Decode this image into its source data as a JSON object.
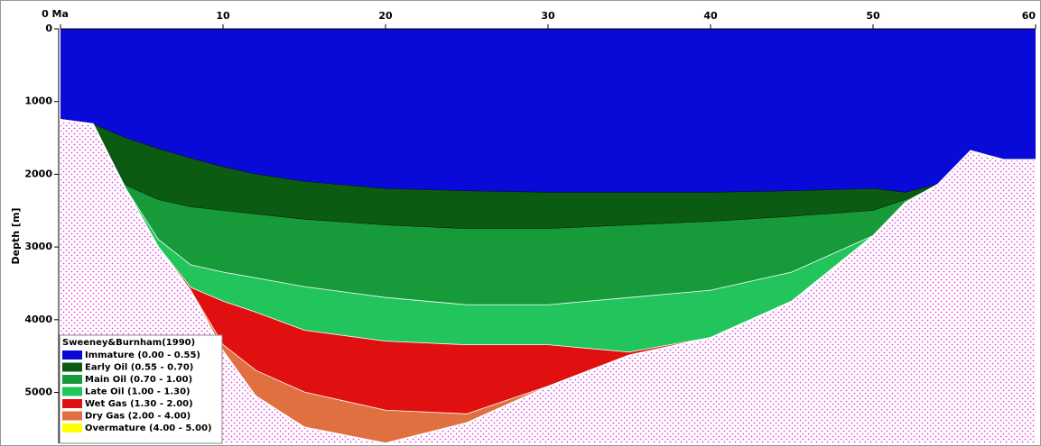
{
  "chart_data": {
    "type": "section",
    "y_label": "Depth [m]",
    "legend_title": "Sweeney&Burnham(1990)",
    "legend_position": "lower left",
    "x": [
      0,
      2,
      4,
      6,
      8,
      10,
      12,
      15,
      20,
      25,
      30,
      35,
      40,
      45,
      50,
      52,
      54,
      56,
      58,
      60
    ],
    "xlim": [
      0,
      60
    ],
    "xticks": [
      {
        "value": 0,
        "label": "0 Ma"
      },
      10,
      20,
      30,
      40,
      50,
      60
    ],
    "ylim": [
      0,
      5700
    ],
    "yticks": [
      0,
      1000,
      2000,
      3000,
      4000,
      5000
    ],
    "basement_color": "#e040e0",
    "series": [
      {
        "name": "Immature (0.00 - 0.55)",
        "color": "#0a0ad8",
        "values": [
          1250,
          1310,
          1500,
          1650,
          1780,
          1900,
          2000,
          2100,
          2200,
          2230,
          2250,
          2250,
          2250,
          2230,
          2200,
          2250,
          2140,
          1680,
          1800,
          1800
        ]
      },
      {
        "name": "Early Oil (0.55 - 0.70)",
        "color": "#0b5c12",
        "values": [
          1250,
          1310,
          2150,
          2350,
          2450,
          2500,
          2550,
          2620,
          2700,
          2750,
          2750,
          2700,
          2650,
          2580,
          2500,
          2350,
          2140,
          1680,
          1800,
          1800
        ]
      },
      {
        "name": "Main Oil (0.70 - 1.00)",
        "color": "#179a3a",
        "values": [
          1250,
          1310,
          2200,
          2900,
          3250,
          3350,
          3430,
          3550,
          3700,
          3800,
          3800,
          3700,
          3600,
          3350,
          2850,
          2390,
          2140,
          1680,
          1800,
          1800
        ]
      },
      {
        "name": "Late Oil (1.00 - 1.30)",
        "color": "#22c45c",
        "values": [
          1250,
          1310,
          2200,
          3000,
          3560,
          3750,
          3900,
          4150,
          4300,
          4350,
          4350,
          4450,
          4250,
          3750,
          2850,
          2390,
          2140,
          1680,
          1800,
          1800
        ]
      },
      {
        "name": "Wet Gas (1.30 - 2.00)",
        "color": "#e01010",
        "values": [
          1250,
          1310,
          2200,
          3000,
          3600,
          4350,
          4700,
          5000,
          5250,
          5300,
          4920,
          4490,
          4250,
          3750,
          2850,
          2390,
          2140,
          1680,
          1800,
          1800
        ]
      },
      {
        "name": "Dry Gas (2.00 - 4.00)",
        "color": "#e07040",
        "values": [
          1250,
          1310,
          2200,
          3000,
          3600,
          4430,
          5050,
          5480,
          5700,
          5420,
          4920,
          4490,
          4250,
          3750,
          2850,
          2390,
          2140,
          1680,
          1800,
          1800
        ]
      },
      {
        "name": "Overmature (4.00 - 5.00)",
        "color": "#ffff00"
      }
    ]
  }
}
